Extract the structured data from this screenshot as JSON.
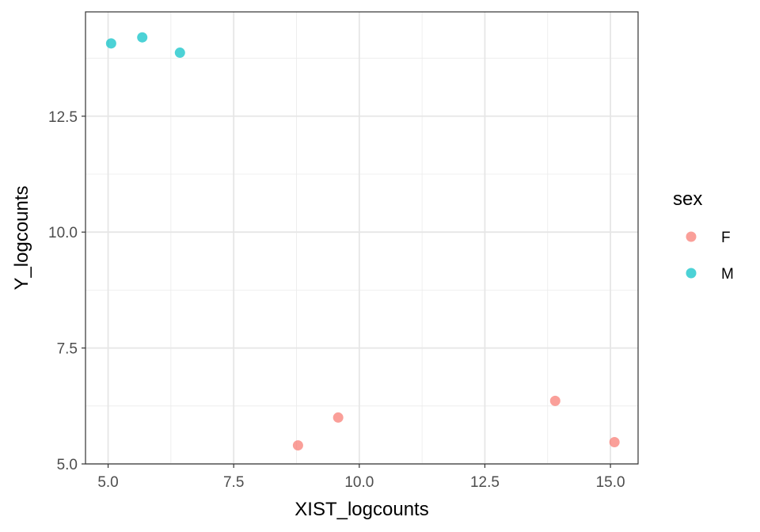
{
  "chart_data": {
    "type": "scatter",
    "title": "",
    "xlabel": "XIST_logcounts",
    "ylabel": "Y_logcounts",
    "xlim": [
      4.55,
      15.55
    ],
    "ylim": [
      5.0,
      14.75
    ],
    "x_ticks": [
      5.0,
      7.5,
      10.0,
      12.5,
      15.0
    ],
    "x_tick_labels": [
      "5.0",
      "7.5",
      "10.0",
      "12.5",
      "15.0"
    ],
    "y_ticks": [
      5.0,
      7.5,
      10.0,
      12.5
    ],
    "y_tick_labels": [
      "5.0",
      "7.5",
      "10.0",
      "12.5"
    ],
    "grid": true,
    "legend_placement": "right",
    "legend_title": "sex",
    "series": [
      {
        "name": "F",
        "color": "#F8766D",
        "points": [
          {
            "x": 8.78,
            "y": 5.4
          },
          {
            "x": 9.58,
            "y": 6.0
          },
          {
            "x": 13.9,
            "y": 6.36
          },
          {
            "x": 15.08,
            "y": 5.47
          }
        ]
      },
      {
        "name": "M",
        "color": "#00BFC4",
        "points": [
          {
            "x": 5.06,
            "y": 14.07
          },
          {
            "x": 5.68,
            "y": 14.2
          },
          {
            "x": 6.43,
            "y": 13.87
          }
        ]
      }
    ]
  }
}
